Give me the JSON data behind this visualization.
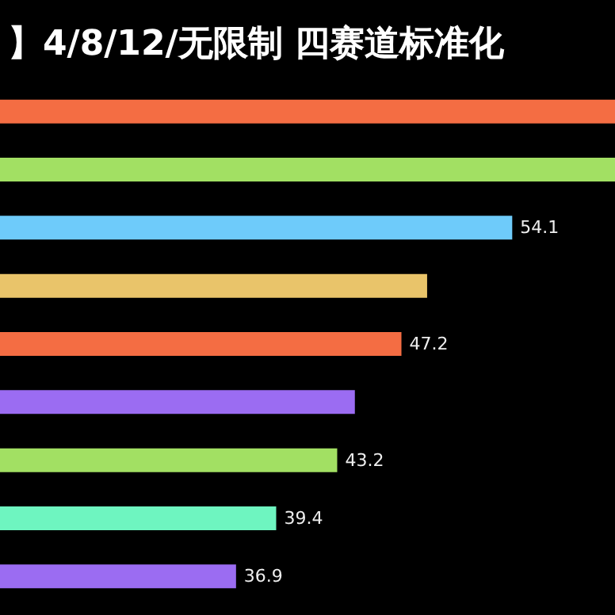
{
  "chart_data": {
    "type": "bar",
    "orientation": "horizontal",
    "title": "】4/8/12/无限制 四赛道标准化",
    "categories": [
      null,
      null,
      null,
      null,
      null,
      null,
      null,
      null,
      null
    ],
    "values": [
      60.5,
      60.5,
      54.1,
      48.8,
      47.2,
      44.3,
      43.2,
      39.4,
      36.9
    ],
    "value_labels": [
      null,
      null,
      "54.1",
      null,
      "47.2",
      null,
      "43.2",
      "39.4",
      "36.9"
    ],
    "colors": [
      "#f46d43",
      "#a2e063",
      "#6ecbfa",
      "#e9c46a",
      "#f46d43",
      "#9b6cf2",
      "#a2e063",
      "#6ef5c0",
      "#9b6cf2"
    ],
    "xlim": [
      22.2,
      60.5
    ],
    "tick_labels": false
  }
}
